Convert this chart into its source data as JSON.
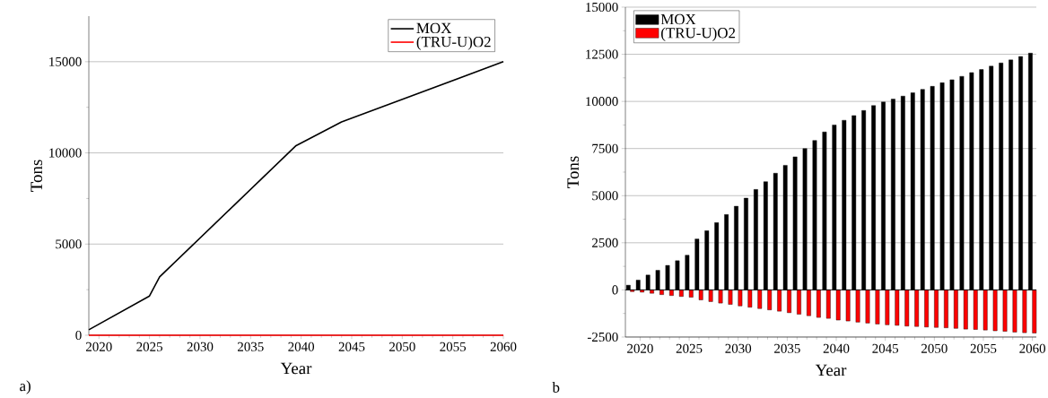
{
  "chart_data": [
    {
      "type": "line",
      "xlabel": "Year",
      "ylabel": "Tons",
      "annotations": [
        "a)"
      ],
      "xlim": [
        2019,
        2060
      ],
      "ylim": [
        0,
        17500
      ],
      "xticks": [
        2020,
        2025,
        2030,
        2035,
        2040,
        2045,
        2050,
        2055,
        2060
      ],
      "yticks": [
        0,
        5000,
        10000,
        15000
      ],
      "grid": "y",
      "legend": "top right",
      "series": [
        {
          "name": "MOX",
          "color": "#000000",
          "x": [
            2019,
            2025,
            2026,
            2039.5,
            2044,
            2060
          ],
          "values": [
            300,
            2150,
            3200,
            10400,
            11700,
            15000
          ]
        },
        {
          "name": "(TRU-U)O2",
          "color": "#ff0000",
          "x": [
            2019,
            2060
          ],
          "values": [
            0,
            0
          ]
        }
      ]
    },
    {
      "type": "bar",
      "xlabel": "Year",
      "ylabel": "Tons",
      "annotations": [
        "b"
      ],
      "xlim": [
        2018.5,
        2060.4
      ],
      "ylim": [
        -2500,
        15000
      ],
      "xticks": [
        2020,
        2025,
        2030,
        2035,
        2040,
        2045,
        2050,
        2055,
        2060
      ],
      "yticks": [
        -2500,
        0,
        2500,
        5000,
        7500,
        10000,
        12500,
        15000
      ],
      "grid": "y",
      "legend": "top left",
      "x": [
        2019,
        2020,
        2021,
        2022,
        2023,
        2024,
        2025,
        2026,
        2027,
        2028,
        2029,
        2030,
        2031,
        2032,
        2033,
        2034,
        2035,
        2036,
        2037,
        2038,
        2039,
        2040,
        2041,
        2042,
        2043,
        2044,
        2045,
        2046,
        2047,
        2048,
        2049,
        2050,
        2051,
        2052,
        2053,
        2054,
        2055,
        2056,
        2057,
        2058,
        2059,
        2060
      ],
      "series": [
        {
          "name": "MOX",
          "color": "#000000",
          "values": [
            250,
            520,
            790,
            1040,
            1300,
            1550,
            1840,
            2700,
            3140,
            3570,
            4000,
            4440,
            4870,
            5330,
            5740,
            6190,
            6610,
            7060,
            7500,
            7930,
            8380,
            8750,
            9000,
            9250,
            9520,
            9780,
            9970,
            10120,
            10280,
            10460,
            10640,
            10800,
            10990,
            11150,
            11330,
            11530,
            11690,
            11870,
            12040,
            12200,
            12380,
            12560
          ]
        },
        {
          "name": "(TRU-U)O2",
          "color": "#ff0000",
          "values": [
            -90,
            -120,
            -180,
            -250,
            -300,
            -350,
            -390,
            -530,
            -620,
            -700,
            -770,
            -850,
            -920,
            -990,
            -1060,
            -1130,
            -1210,
            -1290,
            -1370,
            -1460,
            -1510,
            -1600,
            -1650,
            -1710,
            -1760,
            -1810,
            -1850,
            -1880,
            -1920,
            -1940,
            -1970,
            -1990,
            -2010,
            -2040,
            -2080,
            -2100,
            -2130,
            -2170,
            -2200,
            -2240,
            -2270,
            -2290
          ]
        }
      ]
    }
  ]
}
